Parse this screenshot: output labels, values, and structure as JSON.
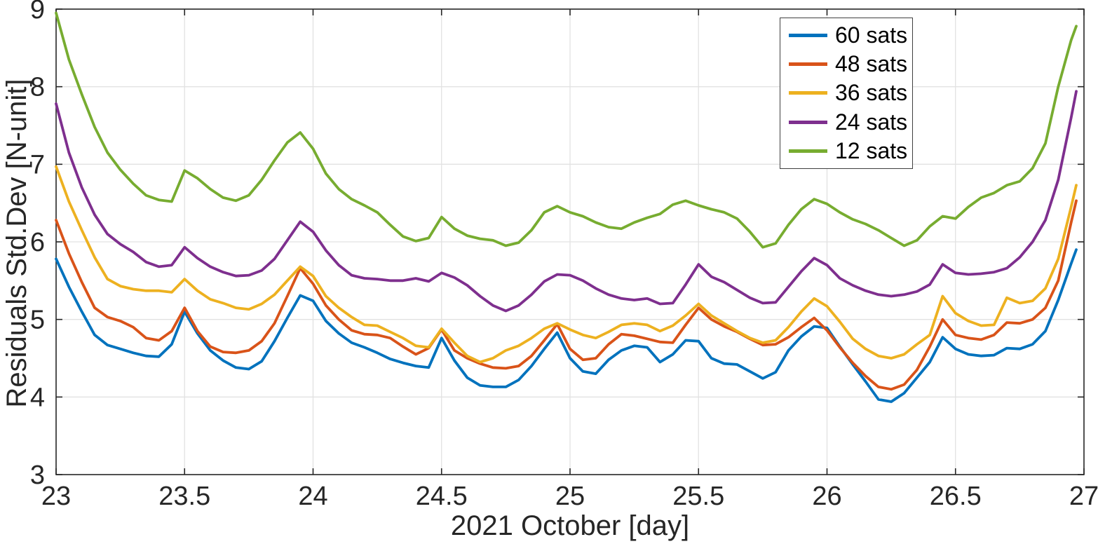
{
  "figure": {
    "background": "#ffffff",
    "axis_color": "#262626",
    "grid_color": "#e2e2e2",
    "legend_border_color": "#404040"
  },
  "chart_data": {
    "type": "line",
    "title": "",
    "xlabel": "2021 October [day]",
    "ylabel": "Residuals Std.Dev [N-unit]",
    "xlim": [
      23,
      27
    ],
    "ylim": [
      3,
      9
    ],
    "grid": true,
    "legend_position": "top-right",
    "xticks": [
      23,
      23.5,
      24,
      24.5,
      25,
      25.5,
      26,
      26.5,
      27
    ],
    "xtick_labels": [
      "23",
      "23.5",
      "24",
      "24.5",
      "25",
      "25.5",
      "26",
      "26.5",
      "27"
    ],
    "yticks": [
      3,
      4,
      5,
      6,
      7,
      8,
      9
    ],
    "ytick_labels": [
      "3",
      "4",
      "5",
      "6",
      "7",
      "8",
      "9"
    ],
    "x": [
      23.0,
      23.05,
      23.1,
      23.15,
      23.2,
      23.25,
      23.3,
      23.35,
      23.4,
      23.45,
      23.5,
      23.55,
      23.6,
      23.65,
      23.7,
      23.75,
      23.8,
      23.85,
      23.9,
      23.95,
      24.0,
      24.05,
      24.1,
      24.15,
      24.2,
      24.25,
      24.3,
      24.35,
      24.4,
      24.45,
      24.5,
      24.55,
      24.6,
      24.65,
      24.7,
      24.75,
      24.8,
      24.85,
      24.9,
      24.95,
      25.0,
      25.05,
      25.1,
      25.15,
      25.2,
      25.25,
      25.3,
      25.35,
      25.4,
      25.45,
      25.5,
      25.55,
      25.6,
      25.65,
      25.7,
      25.75,
      25.8,
      25.85,
      25.9,
      25.95,
      26.0,
      26.05,
      26.1,
      26.15,
      26.2,
      26.25,
      26.3,
      26.35,
      26.4,
      26.45,
      26.5,
      26.55,
      26.6,
      26.65,
      26.7,
      26.75,
      26.8,
      26.85,
      26.9,
      26.95,
      26.97
    ],
    "series": [
      {
        "name": "60 sats",
        "color": "#0072BD",
        "values": [
          5.78,
          5.42,
          5.1,
          4.8,
          4.67,
          4.62,
          4.57,
          4.53,
          4.52,
          4.68,
          5.1,
          4.82,
          4.6,
          4.47,
          4.38,
          4.36,
          4.46,
          4.72,
          5.02,
          5.31,
          5.24,
          4.98,
          4.82,
          4.7,
          4.64,
          4.57,
          4.49,
          4.44,
          4.4,
          4.38,
          4.76,
          4.47,
          4.25,
          4.15,
          4.13,
          4.13,
          4.22,
          4.4,
          4.62,
          4.83,
          4.5,
          4.33,
          4.3,
          4.48,
          4.6,
          4.66,
          4.64,
          4.45,
          4.55,
          4.73,
          4.72,
          4.5,
          4.43,
          4.42,
          4.33,
          4.24,
          4.32,
          4.6,
          4.78,
          4.91,
          4.89,
          4.65,
          4.42,
          4.2,
          3.97,
          3.94,
          4.05,
          4.25,
          4.45,
          4.77,
          4.62,
          4.55,
          4.53,
          4.54,
          4.63,
          4.62,
          4.68,
          4.85,
          5.25,
          5.72,
          5.9
        ]
      },
      {
        "name": "48 sats",
        "color": "#D95319",
        "values": [
          6.28,
          5.85,
          5.48,
          5.15,
          5.03,
          4.98,
          4.9,
          4.76,
          4.73,
          4.85,
          5.15,
          4.85,
          4.65,
          4.58,
          4.57,
          4.6,
          4.72,
          4.95,
          5.3,
          5.66,
          5.46,
          5.18,
          5.0,
          4.86,
          4.81,
          4.8,
          4.76,
          4.65,
          4.55,
          4.63,
          4.87,
          4.6,
          4.5,
          4.43,
          4.38,
          4.37,
          4.4,
          4.53,
          4.73,
          4.94,
          4.62,
          4.48,
          4.5,
          4.68,
          4.81,
          4.79,
          4.75,
          4.71,
          4.7,
          4.93,
          5.15,
          5.0,
          4.91,
          4.84,
          4.75,
          4.67,
          4.68,
          4.77,
          4.9,
          5.02,
          4.86,
          4.64,
          4.44,
          4.27,
          4.13,
          4.1,
          4.16,
          4.35,
          4.65,
          5.0,
          4.8,
          4.76,
          4.74,
          4.8,
          4.96,
          4.95,
          5.0,
          5.15,
          5.5,
          6.25,
          6.53
        ]
      },
      {
        "name": "36 sats",
        "color": "#EDB120",
        "values": [
          6.97,
          6.52,
          6.15,
          5.8,
          5.52,
          5.43,
          5.39,
          5.37,
          5.37,
          5.35,
          5.52,
          5.37,
          5.26,
          5.21,
          5.15,
          5.13,
          5.2,
          5.32,
          5.5,
          5.68,
          5.56,
          5.3,
          5.15,
          5.03,
          4.93,
          4.92,
          4.84,
          4.76,
          4.66,
          4.64,
          4.88,
          4.7,
          4.53,
          4.45,
          4.5,
          4.6,
          4.66,
          4.76,
          4.88,
          4.95,
          4.87,
          4.8,
          4.76,
          4.84,
          4.93,
          4.95,
          4.93,
          4.85,
          4.92,
          5.05,
          5.2,
          5.05,
          4.95,
          4.85,
          4.76,
          4.7,
          4.73,
          4.9,
          5.1,
          5.27,
          5.17,
          4.97,
          4.75,
          4.62,
          4.53,
          4.5,
          4.55,
          4.68,
          4.8,
          5.3,
          5.08,
          4.98,
          4.92,
          4.93,
          5.28,
          5.21,
          5.24,
          5.4,
          5.78,
          6.45,
          6.73
        ]
      },
      {
        "name": "24 sats",
        "color": "#7E2F8E",
        "values": [
          7.78,
          7.15,
          6.7,
          6.35,
          6.1,
          5.97,
          5.87,
          5.74,
          5.68,
          5.7,
          5.93,
          5.79,
          5.68,
          5.61,
          5.56,
          5.57,
          5.63,
          5.78,
          6.02,
          6.26,
          6.13,
          5.89,
          5.7,
          5.57,
          5.53,
          5.52,
          5.5,
          5.5,
          5.53,
          5.49,
          5.6,
          5.54,
          5.44,
          5.3,
          5.18,
          5.11,
          5.18,
          5.32,
          5.49,
          5.58,
          5.57,
          5.5,
          5.4,
          5.32,
          5.27,
          5.25,
          5.27,
          5.2,
          5.21,
          5.45,
          5.71,
          5.55,
          5.48,
          5.38,
          5.28,
          5.21,
          5.22,
          5.42,
          5.62,
          5.79,
          5.7,
          5.53,
          5.44,
          5.37,
          5.32,
          5.3,
          5.32,
          5.36,
          5.45,
          5.71,
          5.6,
          5.58,
          5.59,
          5.61,
          5.66,
          5.8,
          6.0,
          6.28,
          6.8,
          7.6,
          7.94
        ]
      },
      {
        "name": "12 sats",
        "color": "#77AC30",
        "values": [
          8.95,
          8.35,
          7.9,
          7.48,
          7.15,
          6.93,
          6.75,
          6.6,
          6.54,
          6.52,
          6.92,
          6.82,
          6.68,
          6.57,
          6.53,
          6.6,
          6.8,
          7.05,
          7.28,
          7.41,
          7.2,
          6.88,
          6.68,
          6.55,
          6.47,
          6.38,
          6.22,
          6.07,
          6.01,
          6.05,
          6.32,
          6.17,
          6.08,
          6.04,
          6.02,
          5.95,
          5.99,
          6.15,
          6.38,
          6.46,
          6.38,
          6.33,
          6.25,
          6.19,
          6.17,
          6.25,
          6.31,
          6.36,
          6.48,
          6.53,
          6.47,
          6.42,
          6.38,
          6.3,
          6.13,
          5.93,
          5.98,
          6.22,
          6.42,
          6.55,
          6.49,
          6.38,
          6.29,
          6.23,
          6.15,
          6.05,
          5.95,
          6.02,
          6.2,
          6.33,
          6.3,
          6.45,
          6.57,
          6.63,
          6.73,
          6.78,
          6.95,
          7.27,
          8.0,
          8.6,
          8.78
        ]
      }
    ]
  }
}
